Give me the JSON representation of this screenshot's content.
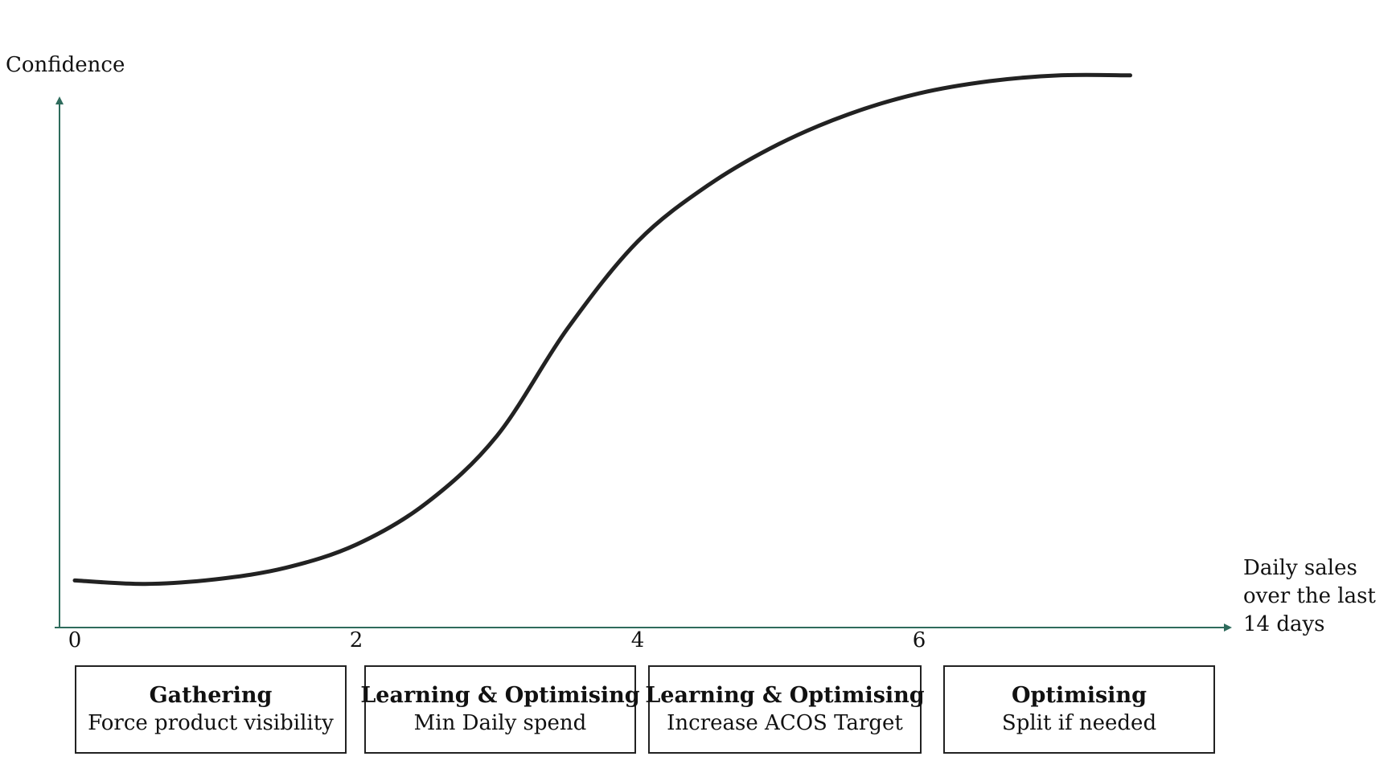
{
  "chart_data": {
    "type": "line",
    "title": "",
    "ylabel": "Confidence",
    "xlabel_lines": [
      "Daily sales",
      "over the last",
      "14 days"
    ],
    "xlim": [
      0,
      8.2
    ],
    "ylim": [
      0,
      100
    ],
    "x_ticks": [
      "0",
      "2",
      "4",
      "6"
    ],
    "x_tick_values": [
      0,
      2,
      4,
      6
    ],
    "grid": false,
    "series": [
      {
        "x": [
          0,
          0.5,
          1,
          1.5,
          2,
          2.5,
          3,
          3.5,
          4,
          4.5,
          5,
          5.5,
          6,
          6.5,
          7,
          7.5
        ],
        "y": [
          8,
          7.4,
          8.2,
          10.2,
          14.2,
          21.4,
          33,
          51.5,
          66.6,
          76.3,
          83.4,
          88.6,
          92.2,
          94.3,
          95.3,
          95.3
        ]
      }
    ],
    "colors": {
      "axis": "#2e6b5c",
      "curve": "#222222"
    }
  },
  "stages": [
    {
      "title": "Gathering",
      "desc": "Force product visibility"
    },
    {
      "title": "Learning & Optimising",
      "desc": "Min Daily spend"
    },
    {
      "title": "Learning & Optimising",
      "desc": "Increase ACOS Target"
    },
    {
      "title": "Optimising",
      "desc": "Split if needed"
    }
  ]
}
